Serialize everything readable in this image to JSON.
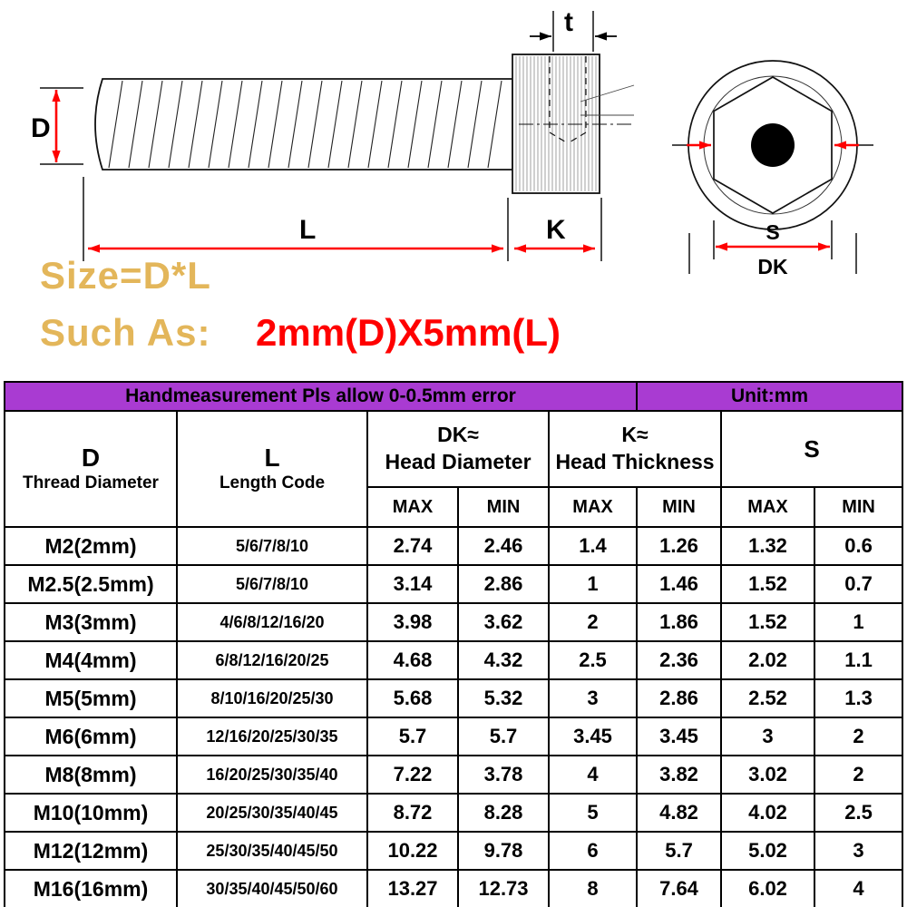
{
  "colors": {
    "banner_bg": "#A93BD2",
    "gold_text": "#E3B65A",
    "dimension_red": "#FF0000",
    "example_red": "#FF0000"
  },
  "diagram": {
    "dim_d": "D",
    "dim_t": "t",
    "dim_l": "L",
    "dim_k": "K",
    "dim_s": "S",
    "dim_dk": "DK",
    "size_formula": "Size=D*L",
    "such_as": "Such As:",
    "example": "2mm(D)X5mm(L)"
  },
  "table": {
    "banner_left": "Handmeasurement Pls allow 0-0.5mm error",
    "banner_right": "Unit:mm",
    "col_d_title": "D",
    "col_d_sub": "Thread Diameter",
    "col_l_title": "L",
    "col_l_sub": "Length Code",
    "col_dk_title": "DK≈",
    "col_dk_sub": "Head Diameter",
    "col_k_title": "K≈",
    "col_k_sub": "Head Thickness",
    "col_s_title": "S",
    "max_label": "MAX",
    "min_label": "MIN",
    "rows": [
      [
        "M2(2mm)",
        "5/6/7/8/10",
        "2.74",
        "2.46",
        "1.4",
        "1.26",
        "1.32",
        "0.6"
      ],
      [
        "M2.5(2.5mm)",
        "5/6/7/8/10",
        "3.14",
        "2.86",
        "1",
        "1.46",
        "1.52",
        "0.7"
      ],
      [
        "M3(3mm)",
        "4/6/8/12/16/20",
        "3.98",
        "3.62",
        "2",
        "1.86",
        "1.52",
        "1"
      ],
      [
        "M4(4mm)",
        "6/8/12/16/20/25",
        "4.68",
        "4.32",
        "2.5",
        "2.36",
        "2.02",
        "1.1"
      ],
      [
        "M5(5mm)",
        "8/10/16/20/25/30",
        "5.68",
        "5.32",
        "3",
        "2.86",
        "2.52",
        "1.3"
      ],
      [
        "M6(6mm)",
        "12/16/20/25/30/35",
        "5.7",
        "5.7",
        "3.45",
        "3.45",
        "3",
        "2"
      ],
      [
        "M8(8mm)",
        "16/20/25/30/35/40",
        "7.22",
        "3.78",
        "4",
        "3.82",
        "3.02",
        "2"
      ],
      [
        "M10(10mm)",
        "20/25/30/35/40/45",
        "8.72",
        "8.28",
        "5",
        "4.82",
        "4.02",
        "2.5"
      ],
      [
        "M12(12mm)",
        "25/30/35/40/45/50",
        "10.22",
        "9.78",
        "6",
        "5.7",
        "5.02",
        "3"
      ],
      [
        "M16(16mm)",
        "30/35/40/45/50/60",
        "13.27",
        "12.73",
        "8",
        "7.64",
        "6.02",
        "4"
      ]
    ]
  }
}
